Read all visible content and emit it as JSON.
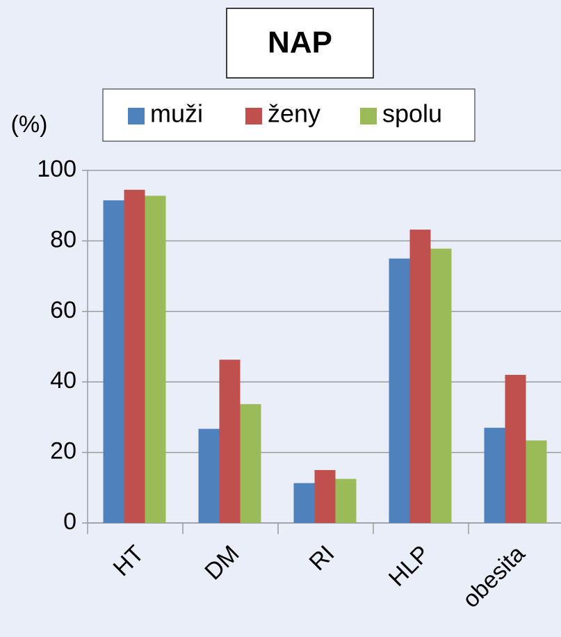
{
  "chart_data": {
    "type": "bar",
    "title": "NAP",
    "y_label": "(%)",
    "categories": [
      "HT",
      "DM",
      "RI",
      "HLP",
      "obesita"
    ],
    "series": [
      {
        "name": "muži",
        "color": "#4f81bd",
        "values": [
          91.5,
          26.7,
          11.3,
          75,
          27
        ]
      },
      {
        "name": "ženy",
        "color": "#c0504d",
        "values": [
          94.5,
          46.3,
          15,
          83.2,
          42
        ]
      },
      {
        "name": "spolu",
        "color": "#9bbb59",
        "values": [
          92.8,
          33.7,
          12.5,
          77.8,
          23.4
        ]
      }
    ],
    "ylim": [
      0,
      100
    ],
    "yticks": [
      0,
      20,
      40,
      60,
      80,
      100
    ],
    "grid": true,
    "legend": "top"
  }
}
